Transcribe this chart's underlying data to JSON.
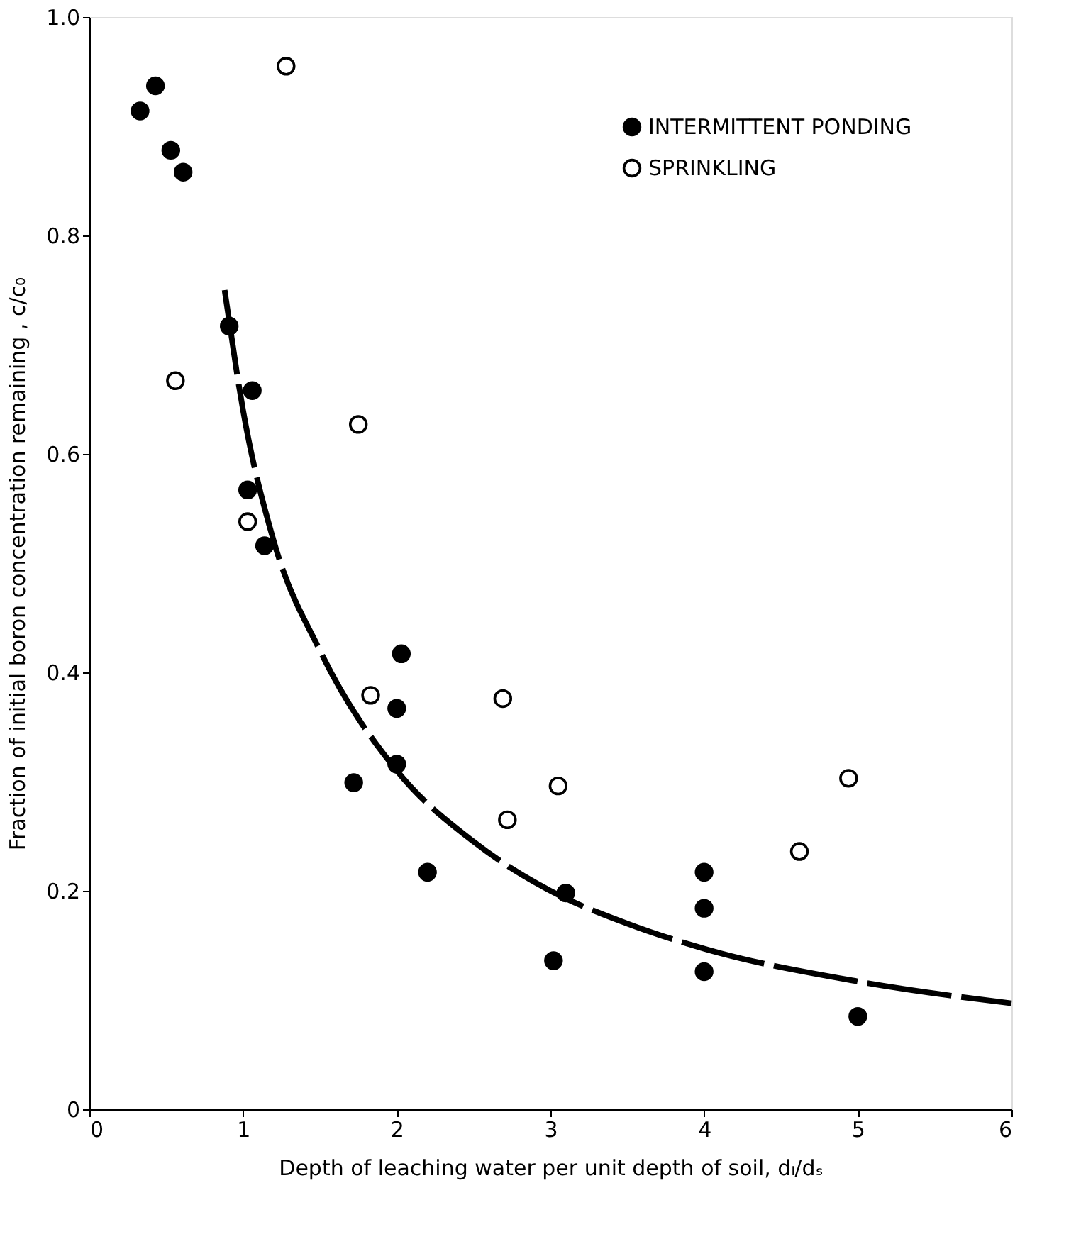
{
  "chart_data": {
    "type": "scatter",
    "xlabel": "Depth of leaching water per unit depth of soil, dₗ/dₛ",
    "ylabel": "Fraction of initial boron concentration remaining , c/c₀",
    "xlim": [
      0,
      6
    ],
    "xticks": [
      0,
      1,
      2,
      3,
      4,
      5,
      6
    ],
    "ylim": [
      0,
      1
    ],
    "yticks": [
      0,
      {
        "value": 0.2,
        "label": "0.2"
      },
      {
        "value": 0.4,
        "label": "0.4"
      },
      {
        "value": 0.6,
        "label": "0.6"
      },
      {
        "value": 0.8,
        "label": "0.8"
      },
      {
        "value": 1,
        "label": "1.0"
      }
    ],
    "grid": false,
    "legend": "top right",
    "marker": "circle",
    "series": [
      {
        "name": "INTERMITTENT PONDING",
        "color": "#000000",
        "x": [
          0.33,
          0.43,
          0.53,
          0.61,
          0.91,
          1.06,
          1.03,
          1.14,
          2.03,
          2.0,
          2.0,
          1.72,
          2.2,
          3.1,
          3.02,
          4.0,
          4.0,
          4.0,
          5.0
        ],
        "values": [
          0.914,
          0.937,
          0.878,
          0.858,
          0.717,
          0.658,
          0.567,
          0.516,
          0.417,
          0.367,
          0.316,
          0.299,
          0.217,
          0.198,
          0.136,
          0.217,
          0.184,
          0.126,
          0.085
        ]
      },
      {
        "name": "SPRINKLING",
        "color": "#000000",
        "x": [
          1.28,
          0.56,
          1.75,
          1.03,
          1.83,
          2.69,
          2.72,
          3.05,
          4.62,
          4.94
        ],
        "values": [
          0.955,
          0.667,
          0.627,
          0.538,
          0.379,
          0.376,
          0.265,
          0.296,
          0.236,
          0.303
        ]
      },
      {
        "type": "line",
        "marker": "none",
        "line_style": "dashed",
        "color": "#000000",
        "x": [
          0.88,
          1.0,
          1.2,
          1.5,
          2.0,
          2.5,
          3.0,
          3.5,
          4.0,
          5.0,
          6.0
        ],
        "values": [
          0.75,
          0.64,
          0.52,
          0.42,
          0.31,
          0.245,
          0.2,
          0.17,
          0.147,
          0.117,
          0.097
        ]
      }
    ]
  }
}
